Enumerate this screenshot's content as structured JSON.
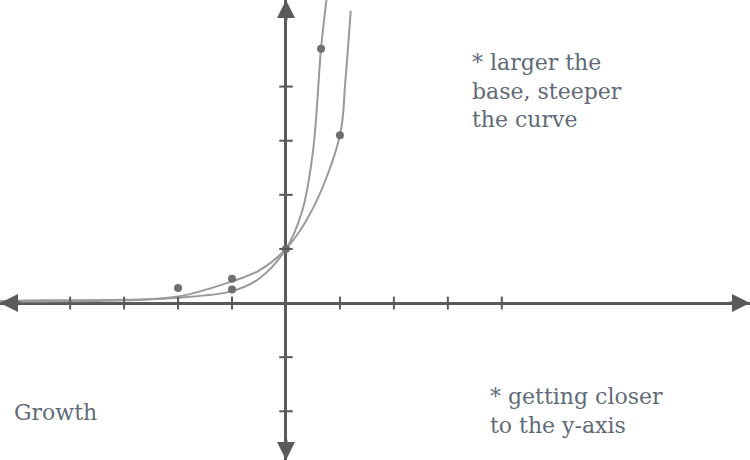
{
  "chart_data": {
    "type": "line",
    "xlim": [
      -5.3,
      8.6
    ],
    "ylim": [
      -2.9,
      5.6
    ],
    "xticks": [
      -4,
      -3,
      -2,
      -1,
      1,
      2,
      3,
      4
    ],
    "yticks": [
      -2,
      -1,
      1,
      2,
      3,
      4
    ],
    "tick_labels": false,
    "grid": false,
    "series": [
      {
        "type": "line",
        "color": "#9a9a9a",
        "line_style": "solid",
        "x": [
          -5.3,
          -4.5,
          -3,
          -2,
          -1,
          -0.5,
          0,
          0.3,
          0.5,
          0.65,
          0.75
        ],
        "values": [
          0.04,
          0.05,
          0.06,
          0.1,
          0.22,
          0.45,
          1,
          1.7,
          2.8,
          4.7,
          5.6
        ]
      },
      {
        "type": "line",
        "color": "#9a9a9a",
        "line_style": "solid",
        "x": [
          -5.3,
          -4.5,
          -3,
          -2,
          -1,
          -0.5,
          0,
          0.5,
          1,
          1.1,
          1.2
        ],
        "values": [
          0.03,
          0.03,
          0.05,
          0.12,
          0.4,
          0.6,
          1,
          1.75,
          3.1,
          4.1,
          5.4
        ]
      },
      {
        "type": "scatter",
        "color": "#6f6f6f",
        "marker": "circle",
        "x": [
          0.65,
          1,
          0,
          -1,
          -1,
          -2
        ],
        "values": [
          4.7,
          3.1,
          1,
          0.45,
          0.25,
          0.28
        ]
      }
    ],
    "annotations": [
      {
        "text": "* larger the base, steeper the curve"
      },
      {
        "text": "* getting closer to the y-axis"
      },
      {
        "text": "Growth"
      }
    ]
  }
}
